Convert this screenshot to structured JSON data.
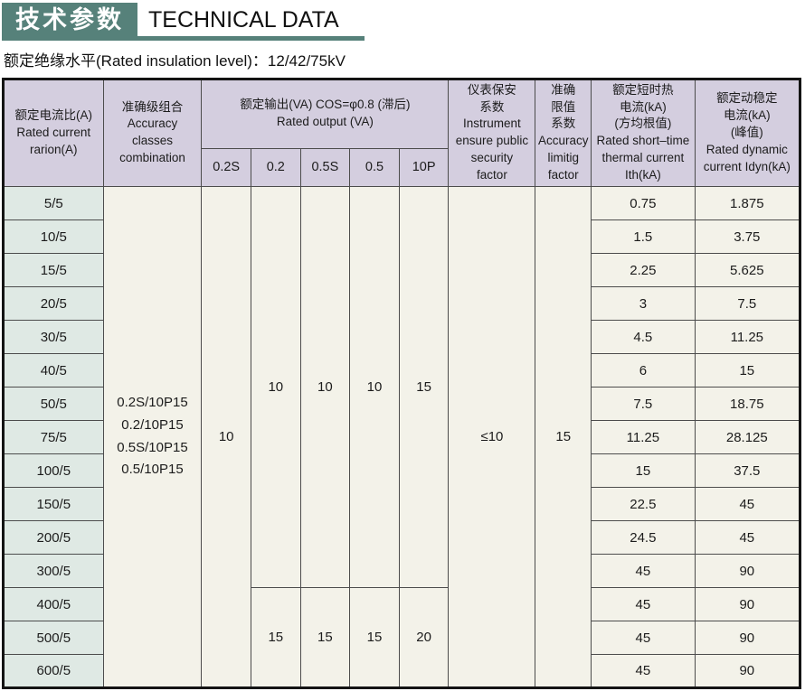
{
  "header": {
    "title_cn": "技术参数",
    "title_en": "TECHNICAL DATA",
    "subtitle": "额定绝缘水平(Rated insulation level)：12/42/75kV"
  },
  "colors": {
    "accent": "#56817A",
    "table_header_bg": "#D4CEDF",
    "row_header_bg": "#DFE9E4",
    "cell_bg": "#F3F2E9"
  },
  "table": {
    "columns": {
      "ratio": "额定电流比(A)\nRated current\nrarion(A)",
      "accuracy_classes": "准确级组合\nAccuracy\nclasses\ncombination",
      "rated_output": "额定输出(VA) COS=φ0.8 (滞后)\nRated output (VA)",
      "sub_columns": [
        "0.2S",
        "0.2",
        "0.5S",
        "0.5",
        "10P"
      ],
      "security_factor": "仪表保安\n系数\nInstrument\nensure public\nsecurity\nfactor",
      "limit_factor": "准确\n限值\n系数\nAccuracy\nlimitig\nfactor",
      "thermal_current": "额定短时热\n电流(kA)\n(方均根值)\nRated short–time\nthermal current\nIth(kA)",
      "dynamic_current": "额定动稳定\n电流(kA)\n(峰值)\nRated dynamic\ncurrent Idyn(kA)"
    },
    "rows": {
      "ratios": [
        "5/5",
        "10/5",
        "15/5",
        "20/5",
        "30/5",
        "40/5",
        "50/5",
        "75/5",
        "100/5",
        "150/5",
        "200/5",
        "300/5",
        "400/5",
        "500/5",
        "600/5"
      ],
      "ith": [
        "0.75",
        "1.5",
        "2.25",
        "3",
        "4.5",
        "6",
        "7.5",
        "11.25",
        "15",
        "22.5",
        "24.5",
        "45",
        "45",
        "45",
        "45"
      ],
      "idyn": [
        "1.875",
        "3.75",
        "5.625",
        "7.5",
        "11.25",
        "15",
        "18.75",
        "28.125",
        "37.5",
        "45",
        "45",
        "90",
        "90",
        "90",
        "90"
      ]
    },
    "merged": {
      "accuracy_classes": "0.2S/10P15\n0.2/10P15\n0.5S/10P15\n0.5/10P15",
      "output_02s": "10",
      "output_upper": [
        "10",
        "10",
        "10",
        "15"
      ],
      "output_lower": [
        "15",
        "15",
        "15",
        "20"
      ],
      "output_split_row": 12,
      "security_factor": "≤10",
      "limit_factor": "15"
    }
  }
}
